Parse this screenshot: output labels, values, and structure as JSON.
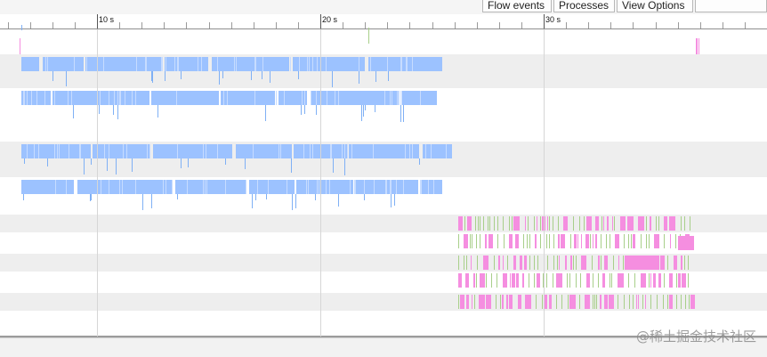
{
  "toolbar": {
    "flow_events_label": "Flow events",
    "processes_label": "Processes",
    "view_options_label": "View Options"
  },
  "ruler": {
    "major_ticks": [
      {
        "seconds": 10,
        "label": "10 s"
      },
      {
        "seconds": 20,
        "label": "20 s"
      },
      {
        "seconds": 30,
        "label": "30 s"
      }
    ]
  },
  "colors": {
    "slice_blue": "#9cc2ff",
    "slice_blue_thin": "#7fb0f5",
    "slice_pink": "#f58ee0",
    "slice_green": "#a8cf8a",
    "row_alt": "#eeeeee",
    "grid": "#d6d6d6"
  },
  "tracks": [
    {
      "kind": "marker"
    },
    {
      "kind": "blue",
      "density": "high"
    },
    {
      "kind": "blue",
      "density": "high"
    },
    {
      "kind": "blue",
      "density": "high"
    },
    {
      "kind": "blue",
      "density": "high"
    },
    {
      "kind": "pink-green"
    },
    {
      "kind": "pink-green"
    },
    {
      "kind": "pink-green"
    },
    {
      "kind": "pink-green"
    },
    {
      "kind": "pink-green"
    },
    {
      "kind": "marker"
    }
  ],
  "watermark": "@稀土掘金技术社区"
}
